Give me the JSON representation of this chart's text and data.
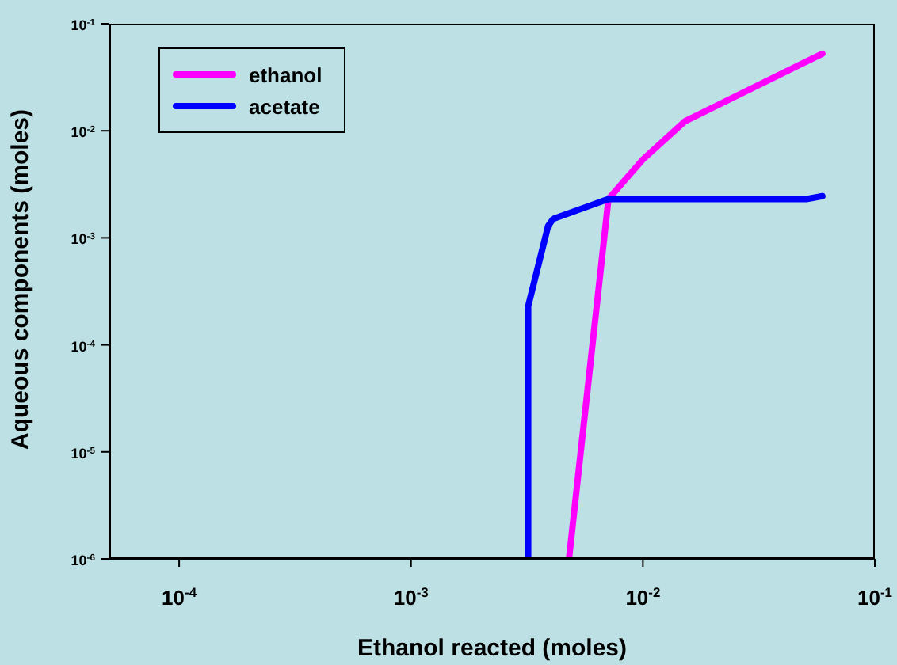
{
  "chart_data": {
    "type": "line",
    "xlabel": "Ethanol reacted (moles)",
    "ylabel": "Aqueous components (moles)",
    "log": "xy",
    "xlim": [
      5e-05,
      0.1
    ],
    "ylim": [
      1e-06,
      0.1
    ],
    "xticks": [
      {
        "value": 0.0001,
        "label": "10$^{-4}$"
      },
      {
        "value": 0.001,
        "label": "10$^{-3}$"
      },
      {
        "value": 0.01,
        "label": "10$^{-2}$"
      },
      {
        "value": 0.1,
        "label": "10$^{-1}$"
      }
    ],
    "yticks": [
      {
        "value": 1e-06,
        "label": "10$^{-6}$"
      },
      {
        "value": 1e-05,
        "label": "10$^{-5}$"
      },
      {
        "value": 0.0001,
        "label": "10$^{-4}$"
      },
      {
        "value": 0.001,
        "label": "10$^{-3}$"
      },
      {
        "value": 0.01,
        "label": "10$^{-2}$"
      },
      {
        "value": 0.1,
        "label": "10$^{-1}$"
      }
    ],
    "legend": "top left",
    "marker": "none",
    "line_style": "solid",
    "series": [
      {
        "name": "ethanol",
        "color": "#ff00ff",
        "x": [
          0.0048,
          0.0071,
          0.01,
          0.0152,
          0.0318,
          0.0594
        ],
        "values": [
          1e-06,
          0.0023,
          0.0054,
          0.0123,
          0.027,
          0.0525
        ]
      },
      {
        "name": "acetate",
        "color": "#0000ff",
        "x": [
          0.0032,
          0.0032,
          0.0039,
          0.0041,
          0.0071,
          0.0507,
          0.0594
        ],
        "values": [
          1e-06,
          0.00023,
          0.00129,
          0.0015,
          0.0023,
          0.0023,
          0.00245
        ]
      }
    ]
  }
}
